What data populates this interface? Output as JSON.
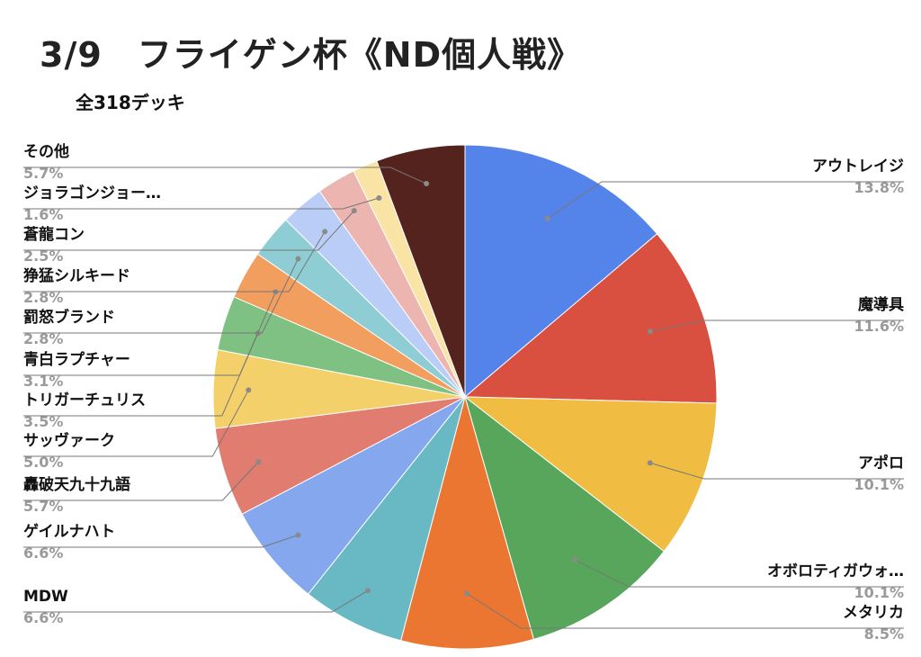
{
  "chart_data": {
    "type": "pie",
    "title": "3/9　フライゲン杯《ND個人戦》",
    "subtitle": "全318デッキ",
    "legend": "leader-labels",
    "slices": [
      {
        "name": "アウトレイジ",
        "pct_label": "13.8%",
        "value": 13.8,
        "color": "#5484EA"
      },
      {
        "name": "魔導具",
        "pct_label": "11.6%",
        "value": 11.6,
        "color": "#D95040"
      },
      {
        "name": "アポロ",
        "pct_label": "10.1%",
        "value": 10.1,
        "color": "#F0BD42"
      },
      {
        "name": "オボロティガウォ…",
        "pct_label": "10.1%",
        "value": 10.1,
        "color": "#58A65C"
      },
      {
        "name": "メタリカ",
        "pct_label": "8.5%",
        "value": 8.5,
        "color": "#EB7632"
      },
      {
        "name": "MDW",
        "pct_label": "6.6%",
        "value": 6.6,
        "color": "#68B9C4"
      },
      {
        "name": "ゲイルナハト",
        "pct_label": "6.6%",
        "value": 6.6,
        "color": "#84A7EE"
      },
      {
        "name": "轟破天九十九語",
        "pct_label": "5.7%",
        "value": 5.7,
        "color": "#E07C70"
      },
      {
        "name": "サッヴァーク",
        "pct_label": "5.0%",
        "value": 5.0,
        "color": "#F4D06A"
      },
      {
        "name": "トリガーチュリス",
        "pct_label": "3.5%",
        "value": 3.5,
        "color": "#7FC183"
      },
      {
        "name": "青白ラプチャー",
        "pct_label": "3.1%",
        "value": 3.1,
        "color": "#F19E5E"
      },
      {
        "name": "罰怒ブランド",
        "pct_label": "2.8%",
        "value": 2.8,
        "color": "#8DCDD3"
      },
      {
        "name": "狰猛シルキード",
        "pct_label": "2.8%",
        "value": 2.8,
        "color": "#BACDF6"
      },
      {
        "name": "蒼龍コン",
        "pct_label": "2.5%",
        "value": 2.5,
        "color": "#EDB5B0"
      },
      {
        "name": "ジョラゴンジョー…",
        "pct_label": "1.6%",
        "value": 1.6,
        "color": "#F9E4A6"
      },
      {
        "name": "その他",
        "pct_label": "5.7%",
        "value": 5.7,
        "color": "#55231E"
      }
    ]
  }
}
